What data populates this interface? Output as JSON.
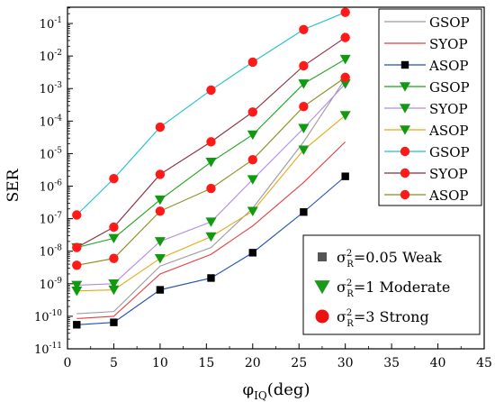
{
  "chart_data": {
    "type": "line",
    "title": "",
    "xlabel_base": "φ",
    "xlabel_sub": "IQ",
    "xlabel_unit": "(deg)",
    "ylabel": "SER",
    "xlim": [
      0,
      45
    ],
    "x_ticks": [
      0,
      5,
      10,
      15,
      20,
      25,
      30,
      35,
      40,
      45
    ],
    "y_scale": "log",
    "ylim_exp": [
      -11,
      -0.5
    ],
    "y_tick_exps": [
      -11,
      -10,
      -9,
      -8,
      -7,
      -6,
      -5,
      -4,
      -3,
      -2,
      -1
    ],
    "y_tick_base": "10",
    "x": [
      1,
      5,
      10,
      15.5,
      20,
      25.5,
      30
    ],
    "series": [
      {
        "name": "GSOP",
        "color": "#9b9b9b",
        "marker": "none",
        "values": [
          1.2e-10,
          1.4e-10,
          3.5e-09,
          1.3e-08,
          2.1e-07,
          2.3e-05,
          0.002
        ]
      },
      {
        "name": "SYOP",
        "color": "#e34040",
        "marker": "none",
        "values": [
          8.5e-11,
          1e-10,
          2e-09,
          8e-09,
          6e-08,
          1.3e-06,
          2.3e-05
        ]
      },
      {
        "name": "ASOP",
        "color": "#1f4fb5",
        "marker": "square",
        "values": [
          5.5e-11,
          6.5e-11,
          6.5e-10,
          1.5e-09,
          9e-09,
          1.6e-07,
          2e-06
        ]
      },
      {
        "name": "GSOP",
        "color": "#1aa31a",
        "marker": "triangle-down",
        "values": [
          1.3e-08,
          2.5e-08,
          3.8e-07,
          5.5e-06,
          3.8e-05,
          0.0014,
          0.008
        ]
      },
      {
        "name": "SYOP",
        "color": "#b38ae0",
        "marker": "triangle-down",
        "values": [
          9e-10,
          1e-09,
          2e-08,
          8e-08,
          1.6e-06,
          6e-05,
          0.0014
        ]
      },
      {
        "name": "ASOP",
        "color": "#e6a919",
        "marker": "triangle-down",
        "values": [
          6e-10,
          6.5e-10,
          6e-09,
          2.8e-08,
          1.7e-07,
          1.3e-05,
          0.00015
        ]
      },
      {
        "name": "GSOP",
        "color": "#20c0cc",
        "marker": "circle",
        "values": [
          1.3e-07,
          1.7e-06,
          6.5e-05,
          0.0009,
          0.0065,
          0.065,
          0.22
        ]
      },
      {
        "name": "SYOP",
        "color": "#8b2a3c",
        "marker": "circle",
        "values": [
          1.3e-08,
          5.5e-08,
          2.3e-06,
          2.3e-05,
          0.00019,
          0.005,
          0.037
        ]
      },
      {
        "name": "ASOP",
        "color": "#8a8a1a",
        "marker": "circle",
        "values": [
          3.7e-09,
          6e-09,
          1.7e-07,
          8.5e-07,
          6.5e-06,
          0.00028,
          0.0022
        ]
      }
    ],
    "legend_lines": {
      "placement": "top-right",
      "entries": [
        {
          "label": "GSOP",
          "color": "#9b9b9b",
          "marker": "none"
        },
        {
          "label": "SYOP",
          "color": "#e34040",
          "marker": "none"
        },
        {
          "label": "ASOP",
          "color": "#1f4fb5",
          "marker": "square"
        },
        {
          "label": "GSOP",
          "color": "#1aa31a",
          "marker": "triangle-down"
        },
        {
          "label": "SYOP",
          "color": "#b38ae0",
          "marker": "triangle-down"
        },
        {
          "label": "ASOP",
          "color": "#e6a919",
          "marker": "triangle-down"
        },
        {
          "label": "GSOP",
          "color": "#20c0cc",
          "marker": "circle"
        },
        {
          "label": "SYOP",
          "color": "#8b2a3c",
          "marker": "circle"
        },
        {
          "label": "ASOP",
          "color": "#8a8a1a",
          "marker": "circle"
        }
      ]
    },
    "legend_turbulence": {
      "placement": "bottom-right",
      "entries": [
        {
          "marker": "square",
          "marker_color": "#555555",
          "sigma": "σ",
          "sub": "R",
          "sup": "2",
          "value": "=0.05",
          "level": "Weak"
        },
        {
          "marker": "triangle-down",
          "marker_color": "#1a9a1a",
          "sigma": "σ",
          "sub": "R",
          "sup": "2",
          "value": "=1",
          "level": "Moderate"
        },
        {
          "marker": "circle",
          "marker_color": "#ee1111",
          "sigma": "σ",
          "sub": "R",
          "sup": "2",
          "value": "=3",
          "level": "Strong"
        }
      ]
    }
  }
}
